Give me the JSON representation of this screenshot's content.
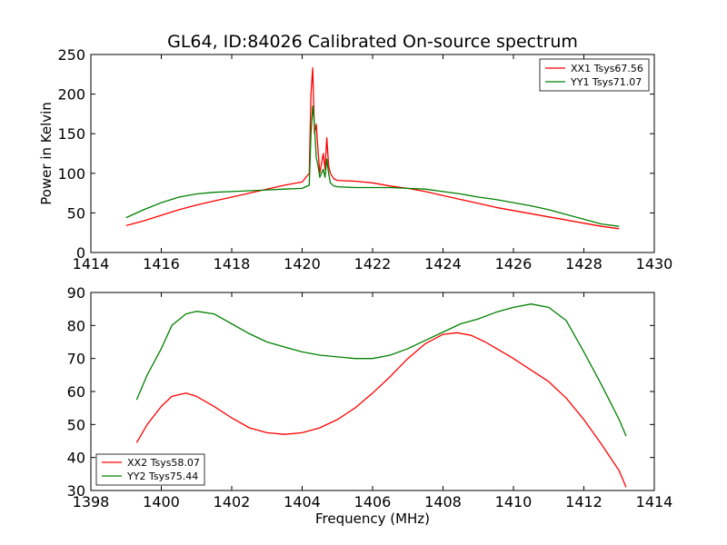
{
  "chart_data": [
    {
      "type": "line",
      "title": "GL64, ID:84026 Calibrated On-source spectrum",
      "xlabel": "",
      "ylabel": "Power in Kelvin",
      "xlim": [
        1414,
        1430
      ],
      "ylim": [
        0,
        250
      ],
      "xticks": [
        1414,
        1416,
        1418,
        1420,
        1422,
        1424,
        1426,
        1428,
        1430
      ],
      "yticks": [
        0,
        50,
        100,
        150,
        200,
        250
      ],
      "legend_position": "top-right",
      "series": [
        {
          "name": "XX1 Tsys67.56",
          "color": "#ff0000",
          "x": [
            1415.0,
            1415.5,
            1416.0,
            1416.5,
            1417.0,
            1417.5,
            1418.0,
            1418.5,
            1419.0,
            1419.5,
            1420.0,
            1420.2,
            1420.25,
            1420.3,
            1420.35,
            1420.4,
            1420.45,
            1420.5,
            1420.6,
            1420.65,
            1420.7,
            1420.75,
            1420.8,
            1420.9,
            1421.0,
            1421.5,
            1422.0,
            1422.5,
            1423.0,
            1423.5,
            1424.0,
            1424.5,
            1425.0,
            1425.5,
            1426.0,
            1426.5,
            1427.0,
            1427.5,
            1428.0,
            1428.5,
            1429.0
          ],
          "y": [
            34,
            40,
            47,
            54,
            60,
            65,
            70,
            75,
            80,
            85,
            89,
            100,
            200,
            233,
            150,
            162,
            130,
            100,
            125,
            105,
            145,
            110,
            100,
            93,
            91,
            90,
            88,
            84,
            81,
            77,
            72,
            67,
            62,
            57,
            53,
            49,
            45,
            41,
            37,
            33,
            30
          ]
        },
        {
          "name": "YY1 Tsys71.07",
          "color": "#008000",
          "x": [
            1415.0,
            1415.5,
            1416.0,
            1416.5,
            1417.0,
            1417.5,
            1418.0,
            1418.5,
            1419.0,
            1419.5,
            1420.0,
            1420.2,
            1420.25,
            1420.3,
            1420.35,
            1420.4,
            1420.45,
            1420.5,
            1420.6,
            1420.65,
            1420.7,
            1420.75,
            1420.8,
            1420.9,
            1421.0,
            1421.5,
            1422.0,
            1422.5,
            1423.0,
            1423.5,
            1424.0,
            1424.5,
            1425.0,
            1425.5,
            1426.0,
            1426.5,
            1427.0,
            1427.5,
            1428.0,
            1428.5,
            1429.0
          ],
          "y": [
            44,
            54,
            63,
            70,
            74,
            76,
            77,
            78,
            79,
            80,
            81,
            85,
            150,
            185,
            160,
            120,
            110,
            95,
            105,
            95,
            118,
            100,
            88,
            84,
            83,
            82,
            82,
            82,
            81,
            80,
            77,
            74,
            70,
            67,
            63,
            59,
            54,
            48,
            42,
            36,
            33
          ]
        }
      ]
    },
    {
      "type": "line",
      "title": "",
      "xlabel": "Frequency (MHz)",
      "ylabel": "",
      "xlim": [
        1398,
        1414
      ],
      "ylim": [
        30,
        90
      ],
      "xticks": [
        1398,
        1400,
        1402,
        1404,
        1406,
        1408,
        1410,
        1412,
        1414
      ],
      "yticks": [
        30,
        40,
        50,
        60,
        70,
        80,
        90
      ],
      "legend_position": "bottom-left",
      "series": [
        {
          "name": "XX2 Tsys58.07",
          "color": "#ff0000",
          "x": [
            1399.3,
            1399.6,
            1400.0,
            1400.3,
            1400.7,
            1401.0,
            1401.5,
            1402.0,
            1402.5,
            1403.0,
            1403.5,
            1404.0,
            1404.5,
            1405.0,
            1405.5,
            1406.0,
            1406.5,
            1407.0,
            1407.5,
            1408.0,
            1408.4,
            1408.8,
            1409.2,
            1409.6,
            1410.0,
            1410.5,
            1411.0,
            1411.5,
            1412.0,
            1412.5,
            1413.0,
            1413.2
          ],
          "y": [
            44.5,
            50,
            55.5,
            58.5,
            59.5,
            58.5,
            55.5,
            52,
            49,
            47.5,
            47,
            47.5,
            49,
            51.5,
            55,
            59.5,
            64.5,
            70,
            74.5,
            77.3,
            77.8,
            77,
            75,
            72.5,
            70,
            66.5,
            63,
            58,
            51.5,
            44,
            36,
            31
          ]
        },
        {
          "name": "YY2 Tsys75.44",
          "color": "#008000",
          "x": [
            1399.3,
            1399.6,
            1400.0,
            1400.3,
            1400.7,
            1401.0,
            1401.5,
            1402.0,
            1402.5,
            1403.0,
            1403.5,
            1404.0,
            1404.5,
            1405.0,
            1405.5,
            1406.0,
            1406.5,
            1407.0,
            1407.5,
            1408.0,
            1408.5,
            1409.0,
            1409.5,
            1410.0,
            1410.5,
            1411.0,
            1411.5,
            1412.0,
            1412.5,
            1413.0,
            1413.2
          ],
          "y": [
            57.5,
            65,
            73,
            80,
            83.5,
            84.3,
            83.5,
            80.5,
            77.5,
            75,
            73.5,
            72,
            71,
            70.5,
            70,
            70,
            71,
            73,
            75.5,
            78,
            80.5,
            82,
            84,
            85.5,
            86.5,
            85.5,
            81.5,
            72,
            62,
            51.5,
            46.5
          ]
        }
      ]
    }
  ]
}
